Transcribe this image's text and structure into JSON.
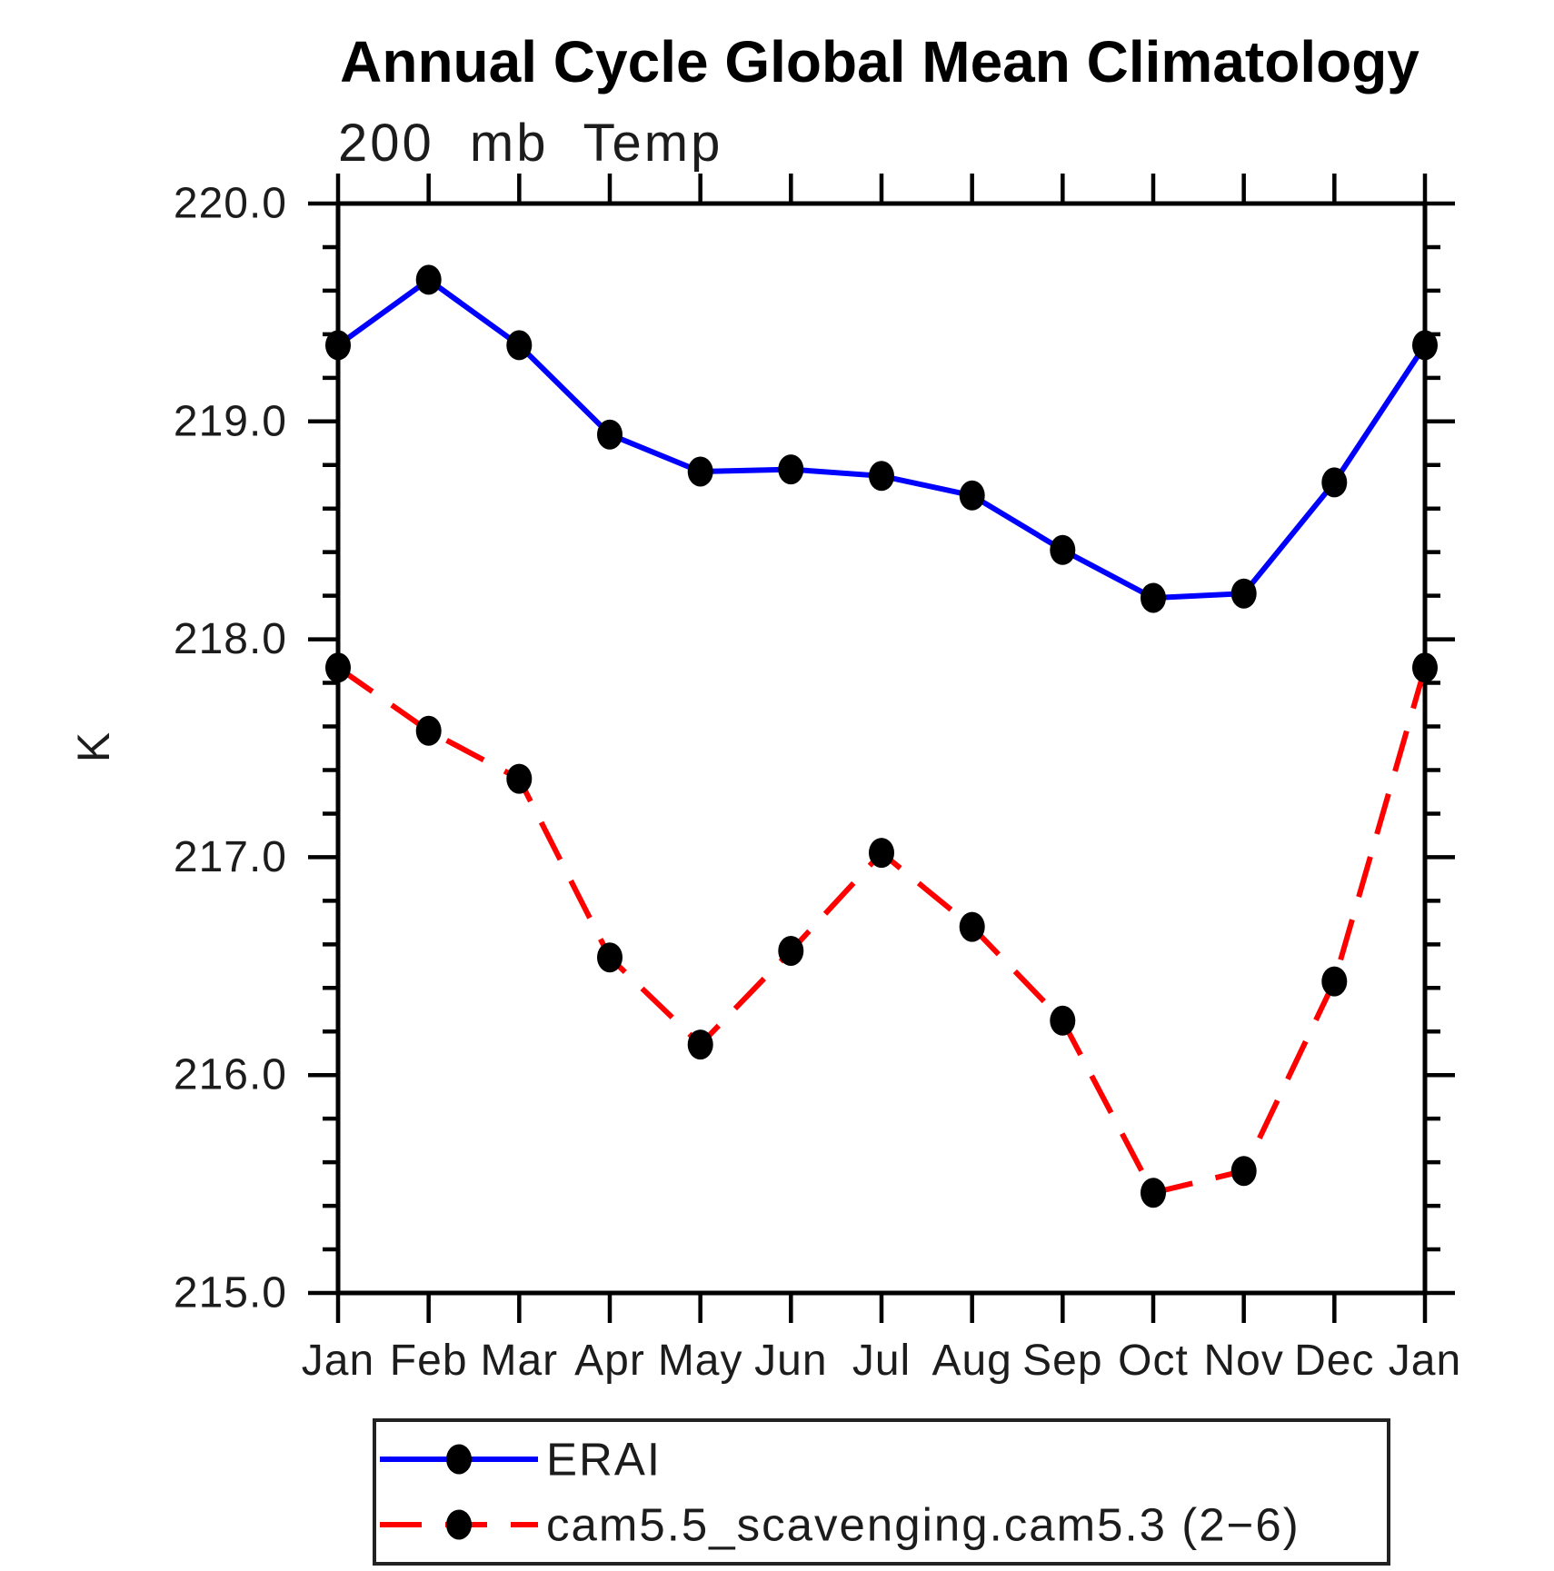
{
  "chart_data": {
    "type": "line",
    "title": "Annual Cycle Global Mean Climatology",
    "subtitle": "200 mb Temp",
    "ylabel": "K",
    "xlabel": "",
    "ylim": [
      215.0,
      220.0
    ],
    "ymajor_tick_interval": 1.0,
    "yminor_tick_interval": 0.2,
    "ytick_labels": [
      "215.0",
      "216.0",
      "217.0",
      "218.0",
      "219.0",
      "220.0"
    ],
    "categories": [
      "Jan",
      "Feb",
      "Mar",
      "Apr",
      "May",
      "Jun",
      "Jul",
      "Aug",
      "Sep",
      "Oct",
      "Nov",
      "Dec",
      "Jan"
    ],
    "grid": false,
    "legend_position": "bottom-left",
    "series": [
      {
        "name": "ERAI",
        "line_color": "#0000ff",
        "line_style": "solid",
        "marker": "filled-circle",
        "marker_color": "#000000",
        "values": [
          219.35,
          219.65,
          219.35,
          218.94,
          218.77,
          218.78,
          218.75,
          218.66,
          218.41,
          218.19,
          218.21,
          218.72,
          219.35
        ]
      },
      {
        "name": "cam5.5_scavenging.cam5.3 (2−6)",
        "line_color": "#ff0000",
        "line_style": "dashed",
        "marker": "filled-circle",
        "marker_color": "#000000",
        "values": [
          217.87,
          217.58,
          217.36,
          216.54,
          216.14,
          216.57,
          217.02,
          216.68,
          216.25,
          215.46,
          215.56,
          216.43,
          217.87
        ]
      }
    ]
  }
}
